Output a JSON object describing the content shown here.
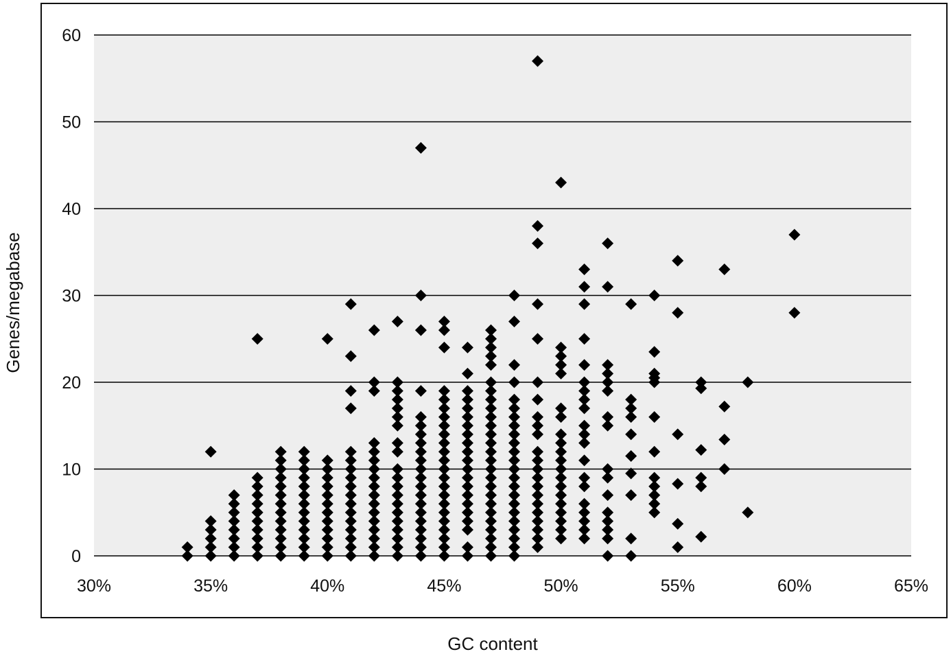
{
  "chart_data": {
    "type": "scatter",
    "title": "",
    "xlabel": "GC content",
    "ylabel": "Genes/megabase",
    "xlim": [
      30,
      65
    ],
    "ylim": [
      0,
      60
    ],
    "x_ticks": [
      30,
      35,
      40,
      45,
      50,
      55,
      60,
      65
    ],
    "x_tick_labels": [
      "30%",
      "35%",
      "40%",
      "45%",
      "50%",
      "55%",
      "60%",
      "65%"
    ],
    "y_ticks": [
      0,
      10,
      20,
      30,
      40,
      50,
      60
    ],
    "y_tick_labels": [
      "0",
      "10",
      "20",
      "30",
      "40",
      "50",
      "60"
    ],
    "grid": "horizontal",
    "legend": "none",
    "marker": "diamond",
    "colors": {
      "marker": "#000000",
      "plot_bg": "#eeeeee",
      "grid": "#000000"
    },
    "series": [
      {
        "columns": [
          {
            "x": 34,
            "y": [
              0,
              1
            ]
          },
          {
            "x": 35,
            "y": [
              0,
              1,
              2,
              3,
              4,
              12
            ]
          },
          {
            "x": 36,
            "y": [
              0,
              1,
              2,
              3,
              4,
              5,
              6,
              7
            ]
          },
          {
            "x": 37,
            "y": [
              0,
              1,
              2,
              3,
              4,
              5,
              6,
              7,
              8,
              9,
              25
            ]
          },
          {
            "x": 38,
            "y": [
              0,
              1,
              2,
              3,
              4,
              5,
              6,
              7,
              8,
              9,
              10,
              11,
              12
            ]
          },
          {
            "x": 39,
            "y": [
              0,
              1,
              2,
              3,
              4,
              5,
              6,
              7,
              8,
              9,
              10,
              11,
              12
            ]
          },
          {
            "x": 40,
            "y": [
              0,
              1,
              2,
              3,
              4,
              5,
              6,
              7,
              8,
              9,
              10,
              11,
              25
            ]
          },
          {
            "x": 41,
            "y": [
              0,
              1,
              2,
              3,
              4,
              5,
              6,
              7,
              8,
              9,
              10,
              11,
              12,
              17,
              19,
              23,
              29
            ]
          },
          {
            "x": 42,
            "y": [
              0,
              1,
              2,
              3,
              4,
              5,
              6,
              7,
              8,
              9,
              10,
              11,
              12,
              13,
              19,
              20,
              26
            ]
          },
          {
            "x": 43,
            "y": [
              0,
              1,
              2,
              3,
              4,
              5,
              6,
              7,
              8,
              9,
              10,
              12,
              13,
              15,
              16,
              17,
              18,
              19,
              20,
              27
            ]
          },
          {
            "x": 44,
            "y": [
              0,
              1,
              2,
              3,
              4,
              5,
              6,
              7,
              8,
              9,
              10,
              11,
              12,
              13,
              14,
              15,
              16,
              19,
              26,
              30,
              47
            ]
          },
          {
            "x": 45,
            "y": [
              0,
              1,
              2,
              3,
              4,
              5,
              6,
              7,
              8,
              9,
              10,
              11,
              12,
              13,
              14,
              15,
              16,
              17,
              18,
              19,
              24,
              26,
              27
            ]
          },
          {
            "x": 46,
            "y": [
              0,
              1,
              3,
              4,
              5,
              6,
              7,
              8,
              9,
              10,
              11,
              12,
              13,
              14,
              15,
              16,
              17,
              18,
              19,
              21,
              24
            ]
          },
          {
            "x": 47,
            "y": [
              0,
              1,
              2,
              3,
              4,
              5,
              6,
              7,
              8,
              9,
              10,
              11,
              12,
              13,
              14,
              15,
              16,
              17,
              18,
              19,
              20,
              22,
              23,
              24,
              25,
              26
            ]
          },
          {
            "x": 48,
            "y": [
              0,
              1,
              2,
              3,
              4,
              5,
              6,
              7,
              8,
              9,
              10,
              11,
              12,
              13,
              14,
              15,
              16,
              17,
              18,
              20,
              22,
              27,
              30
            ]
          },
          {
            "x": 49,
            "y": [
              1,
              2,
              3,
              4,
              5,
              6,
              7,
              8,
              9,
              10,
              11,
              12,
              14,
              15,
              16,
              18,
              20,
              25,
              29,
              36,
              38,
              57
            ]
          },
          {
            "x": 50,
            "y": [
              2,
              3,
              4,
              5,
              6,
              7,
              8,
              9,
              10,
              11,
              12,
              13,
              14,
              16,
              17,
              21,
              22,
              23,
              24,
              43
            ]
          },
          {
            "x": 51,
            "y": [
              2,
              3,
              4,
              5,
              6,
              8,
              9,
              11,
              13,
              14,
              15,
              17,
              18,
              19,
              20,
              22,
              25,
              29,
              31,
              33
            ]
          },
          {
            "x": 52,
            "y": [
              0,
              2,
              3,
              4,
              5,
              7,
              9,
              10,
              15,
              16,
              19,
              20,
              21,
              22,
              31,
              36
            ]
          },
          {
            "x": 53,
            "y": [
              0,
              2,
              7,
              9.5,
              11.5,
              14,
              16,
              17,
              18,
              29
            ]
          },
          {
            "x": 54,
            "y": [
              5,
              6,
              7,
              8,
              9,
              12,
              16,
              20,
              20.5,
              21,
              23.5,
              30
            ]
          },
          {
            "x": 55,
            "y": [
              1,
              3.7,
              8.3,
              14,
              28,
              34
            ]
          },
          {
            "x": 56,
            "y": [
              2.2,
              8,
              9,
              12.2,
              19.3,
              20
            ]
          },
          {
            "x": 57,
            "y": [
              10,
              13.4,
              17.2,
              33
            ]
          },
          {
            "x": 58,
            "y": [
              5,
              20
            ]
          },
          {
            "x": 60,
            "y": [
              28,
              37
            ]
          }
        ]
      }
    ]
  }
}
